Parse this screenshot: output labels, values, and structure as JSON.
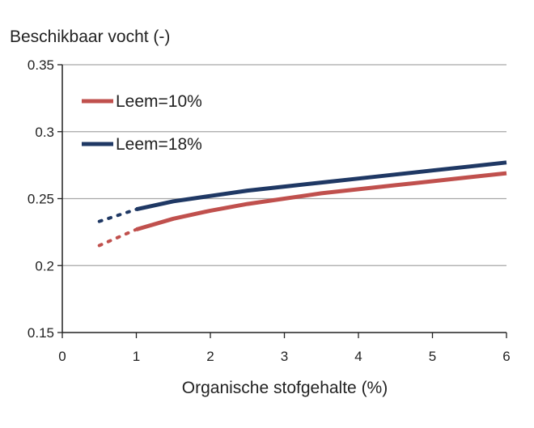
{
  "chart_data": {
    "type": "line",
    "title": "",
    "ylabel": "Beschikbaar vocht (-)",
    "xlabel": "Organische stofgehalte (%)",
    "xlim": [
      0,
      6
    ],
    "ylim": [
      0.15,
      0.35
    ],
    "xticks": [
      "0",
      "1",
      "2",
      "3",
      "4",
      "5",
      "6"
    ],
    "yticks": [
      "0.15",
      "0.2",
      "0.25",
      "0.3",
      "0.35"
    ],
    "grid": "horizontal",
    "legend_placement": "top-left",
    "series": [
      {
        "name": "Leem=10%",
        "color": "#c0504d",
        "dotted_x": [
          0.5,
          1.0
        ],
        "x": [
          1.0,
          1.5,
          2.0,
          2.5,
          3.0,
          3.5,
          4.0,
          4.5,
          5.0,
          5.5,
          6.0
        ],
        "y": [
          0.227,
          0.235,
          0.241,
          0.246,
          0.25,
          0.254,
          0.257,
          0.26,
          0.263,
          0.266,
          0.269
        ],
        "dotted_y": [
          0.215,
          0.227
        ]
      },
      {
        "name": "Leem=18%",
        "color": "#1f3864",
        "dotted_x": [
          0.5,
          1.0
        ],
        "x": [
          1.0,
          1.5,
          2.0,
          2.5,
          3.0,
          3.5,
          4.0,
          4.5,
          5.0,
          5.5,
          6.0
        ],
        "y": [
          0.242,
          0.248,
          0.252,
          0.256,
          0.259,
          0.262,
          0.265,
          0.268,
          0.271,
          0.274,
          0.277
        ],
        "dotted_y": [
          0.233,
          0.242
        ]
      }
    ]
  }
}
